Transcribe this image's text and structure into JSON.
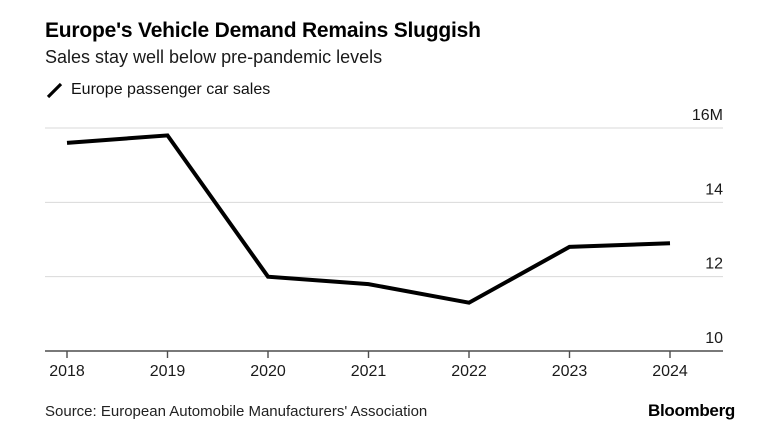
{
  "header": {
    "title": "Europe's Vehicle Demand Remains Sluggish",
    "subtitle": "Sales stay well below pre-pandemic levels"
  },
  "legend": {
    "marker_icon": "slash-icon",
    "label": "Europe passenger car sales"
  },
  "chart_data": {
    "type": "line",
    "title": "Europe's Vehicle Demand Remains Sluggish",
    "subtitle": "Sales stay well below pre-pandemic levels",
    "x": [
      "2018",
      "2019",
      "2020",
      "2021",
      "2022",
      "2023",
      "2024"
    ],
    "series": [
      {
        "name": "Europe passenger car sales",
        "color": "#000000",
        "values": [
          15.6,
          15.8,
          12.0,
          11.8,
          11.3,
          12.8,
          12.9
        ]
      }
    ],
    "unit_suffix": "M",
    "ylim": [
      10,
      16
    ],
    "yticks": [
      10,
      12,
      14,
      16
    ],
    "ytick_labels": [
      "10",
      "12",
      "14",
      "16M"
    ],
    "grid": true,
    "legend_position": "top-left",
    "ylabel": "",
    "xlabel": ""
  },
  "footer": {
    "source": "Source: European Automobile Manufacturers' Association",
    "brand": "Bloomberg"
  },
  "colors": {
    "line": "#000000",
    "grid": "#d9d9d9",
    "axis": "#4d4d4d",
    "tick_label": "#1a1a1a",
    "background": "#ffffff"
  }
}
